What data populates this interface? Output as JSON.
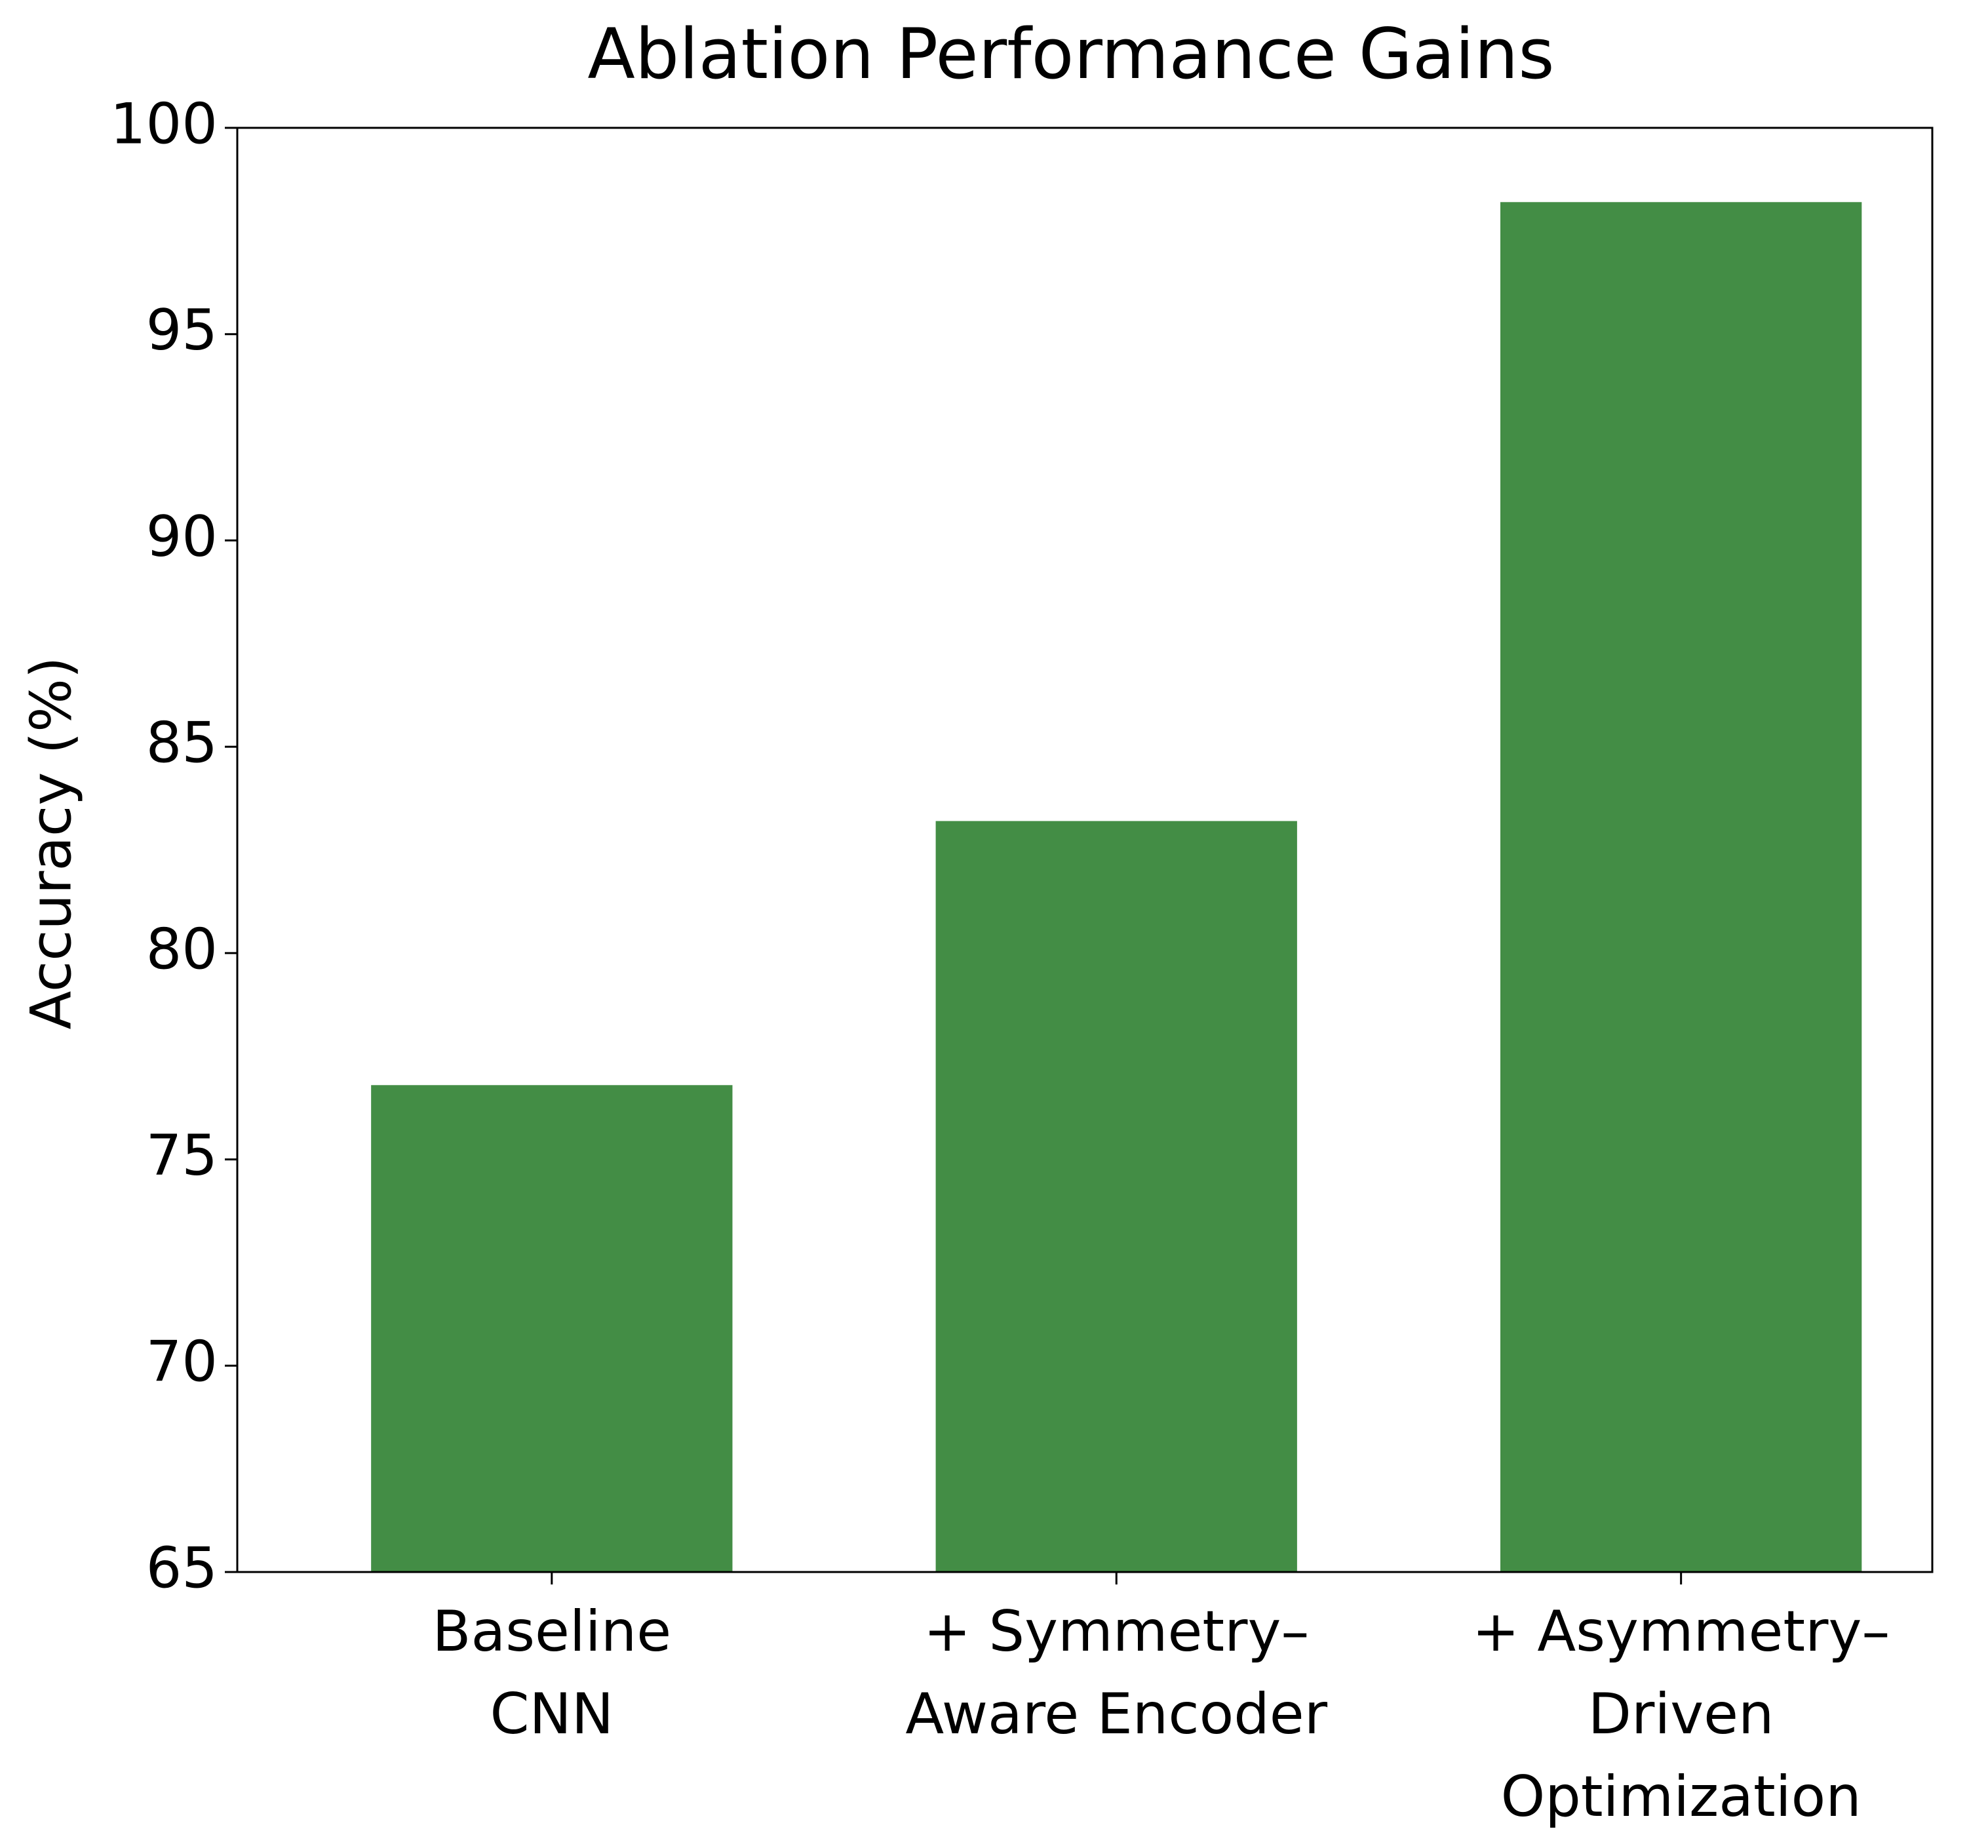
{
  "chart_data": {
    "type": "bar",
    "title": "Ablation Performance Gains",
    "y_label": "Accuracy (%)",
    "categories": [
      "Baseline\nCNN",
      "+ Symmetry–\nAware Encoder",
      "+ Asymmetry–\nDriven\nOptimization"
    ],
    "values": [
      76.8,
      83.2,
      98.2
    ],
    "color": "#438d45",
    "ylim": [
      65,
      100
    ],
    "yticks": [
      65,
      70,
      75,
      80,
      85,
      90,
      95,
      100
    ],
    "grid": false
  }
}
